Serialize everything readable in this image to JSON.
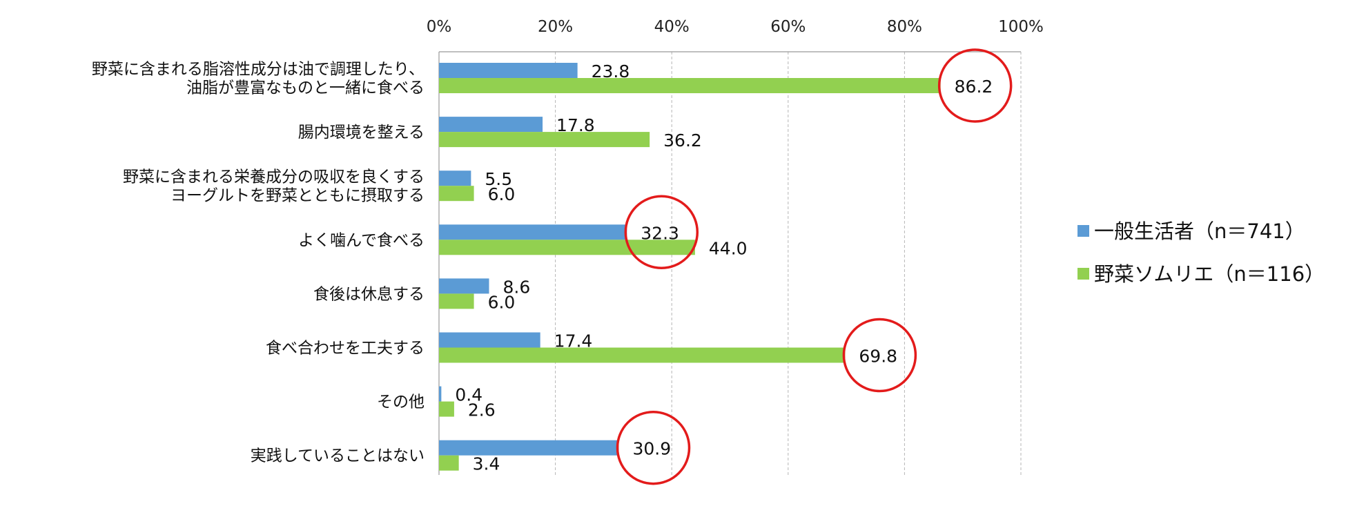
{
  "chart_data": {
    "type": "bar",
    "orientation": "horizontal",
    "categories": [
      [
        "野菜に含まれる脂溶性成分は油で調理したり、",
        "油脂が豊富なものと一緒に食べる"
      ],
      [
        "腸内環境を整える"
      ],
      [
        "野菜に含まれる栄養成分の吸収を良くする",
        "ヨーグルトを野菜とともに摂取する"
      ],
      [
        "よく噛んで食べる"
      ],
      [
        "食後は休息する"
      ],
      [
        "食べ合わせを工夫する"
      ],
      [
        "その他"
      ],
      [
        "実践していることはない"
      ]
    ],
    "series": [
      {
        "name": "一般生活者（n＝741）",
        "color": "#5b9bd5",
        "values": [
          23.8,
          17.8,
          5.5,
          32.3,
          8.6,
          17.4,
          0.4,
          30.9
        ],
        "labels": [
          "23.8",
          "17.8",
          "5.5",
          "32.3",
          "8.6",
          "17.4",
          "0.4",
          "30.9"
        ]
      },
      {
        "name": "野菜ソムリエ（n＝116）",
        "color": "#92d050",
        "values": [
          86.2,
          36.2,
          6.0,
          44.0,
          6.0,
          69.8,
          2.6,
          3.4
        ],
        "labels": [
          "86.2",
          "36.2",
          "6.0",
          "44.0",
          "6.0",
          "69.8",
          "2.6",
          "3.4"
        ]
      }
    ],
    "xlim": [
      0,
      100
    ],
    "ticks": [
      0,
      20,
      40,
      60,
      80,
      100
    ],
    "tick_labels": [
      "0%",
      "20%",
      "40%",
      "60%",
      "80%",
      "100%"
    ],
    "axis_position": "top",
    "grid": true,
    "legend_position": "right",
    "highlight_color": "#e31b1b",
    "highlights": [
      {
        "category": 0,
        "series": 1
      },
      {
        "category": 3,
        "series": 0
      },
      {
        "category": 5,
        "series": 1
      },
      {
        "category": 7,
        "series": 0
      }
    ]
  }
}
